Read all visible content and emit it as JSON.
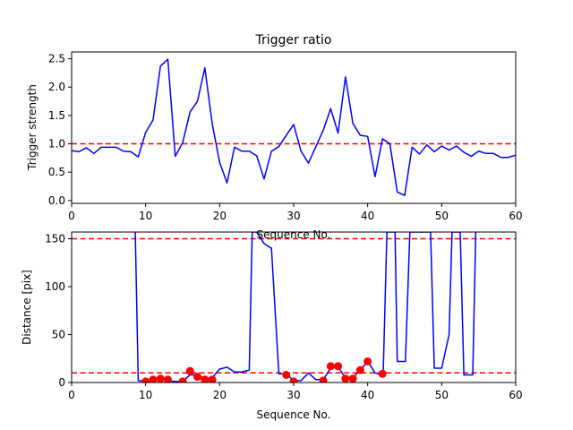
{
  "chart_data": [
    {
      "type": "line",
      "title": "Trigger ratio",
      "xlabel": "Sequence No.",
      "ylabel": "Trigger strength",
      "xlim": [
        0,
        60
      ],
      "ylim": [
        -0.05,
        2.62
      ],
      "xticks": [
        0,
        10,
        20,
        30,
        40,
        50,
        60
      ],
      "yticks": [
        0.0,
        0.5,
        1.0,
        1.5,
        2.0,
        2.5
      ],
      "ytick_labels": [
        "0.0",
        "0.5",
        "1.0",
        "1.5",
        "2.0",
        "2.5"
      ],
      "grid": false,
      "series": [
        {
          "color": "#0000ff",
          "style": "solid",
          "x": [
            0,
            1,
            2,
            3,
            4,
            5,
            6,
            7,
            8,
            9,
            10,
            11,
            12,
            13,
            14,
            15,
            16,
            17,
            18,
            19,
            20,
            21,
            22,
            23,
            24,
            25,
            26,
            27,
            28,
            29,
            30,
            31,
            32,
            33,
            34,
            35,
            36,
            37,
            38,
            39,
            40,
            41,
            42,
            43,
            44,
            45,
            46,
            47,
            48,
            49,
            50,
            51,
            52,
            53,
            54,
            55,
            56,
            57,
            58,
            59,
            60
          ],
          "y": [
            0.88,
            0.86,
            0.93,
            0.83,
            0.94,
            0.94,
            0.94,
            0.87,
            0.86,
            0.77,
            1.2,
            1.42,
            2.37,
            2.49,
            0.78,
            1.02,
            1.56,
            1.75,
            2.34,
            1.35,
            0.67,
            0.31,
            0.94,
            0.87,
            0.87,
            0.79,
            0.38,
            0.87,
            0.95,
            1.15,
            1.34,
            0.87,
            0.66,
            0.95,
            1.24,
            1.62,
            1.19,
            2.18,
            1.36,
            1.15,
            1.13,
            0.42,
            1.09,
            1.0,
            0.15,
            0.09,
            0.94,
            0.82,
            0.98,
            0.86,
            0.96,
            0.89,
            0.96,
            0.85,
            0.78,
            0.87,
            0.83,
            0.83,
            0.76,
            0.76,
            0.8
          ]
        }
      ],
      "hlines": [
        {
          "y": 1.0,
          "color": "#ff0000",
          "style": "dashed"
        }
      ]
    },
    {
      "type": "line",
      "title": "",
      "xlabel": "Sequence No.",
      "ylabel": "Distance [pix]",
      "xlim": [
        0,
        60
      ],
      "ylim": [
        0,
        157
      ],
      "xticks": [
        0,
        10,
        20,
        30,
        40,
        50,
        60
      ],
      "yticks": [
        0,
        50,
        100,
        150
      ],
      "grid": false,
      "series": [
        {
          "color": "#0000ff",
          "style": "solid",
          "x": [
            8.6,
            9,
            10,
            11,
            12,
            13,
            14,
            15,
            16,
            17,
            18,
            19,
            20,
            21,
            22,
            23,
            24,
            24.4,
            25,
            26,
            27,
            28,
            29,
            30,
            31,
            32,
            33,
            34,
            35,
            36,
            37,
            38,
            39,
            40,
            41,
            42,
            42.1,
            42.6,
            43.5,
            43.7,
            44,
            45,
            45.1,
            45.7,
            48.3,
            48.5,
            49,
            50,
            51,
            51.4,
            52.3,
            52.5,
            53,
            54,
            54.2,
            54.6
          ],
          "y": [
            157,
            2,
            1,
            2,
            3,
            2,
            1,
            1,
            8,
            8,
            4,
            5,
            14,
            16,
            11,
            11,
            13,
            157,
            157,
            145,
            140,
            9,
            9,
            2,
            2,
            10,
            3,
            3,
            15,
            16,
            5,
            5,
            13,
            22,
            10,
            8,
            10,
            157,
            157,
            157,
            22,
            22,
            22,
            157,
            157,
            157,
            15,
            15,
            50,
            157,
            157,
            157,
            8,
            8,
            8,
            157
          ]
        },
        {
          "color": "#ff0000",
          "style": "markers",
          "x": [
            10,
            11,
            12,
            13,
            15,
            16,
            17,
            18,
            19,
            29,
            30,
            34,
            35,
            36,
            37,
            38,
            39,
            40,
            42
          ],
          "y": [
            1,
            3,
            4,
            3,
            1,
            12,
            6,
            3,
            3,
            8,
            1,
            2,
            17,
            17,
            4,
            4,
            13,
            22,
            9
          ]
        }
      ],
      "hlines": [
        {
          "y": 150,
          "color": "#ff0000",
          "style": "dashed"
        },
        {
          "y": 10,
          "color": "#ff0000",
          "style": "dashed"
        }
      ]
    }
  ]
}
